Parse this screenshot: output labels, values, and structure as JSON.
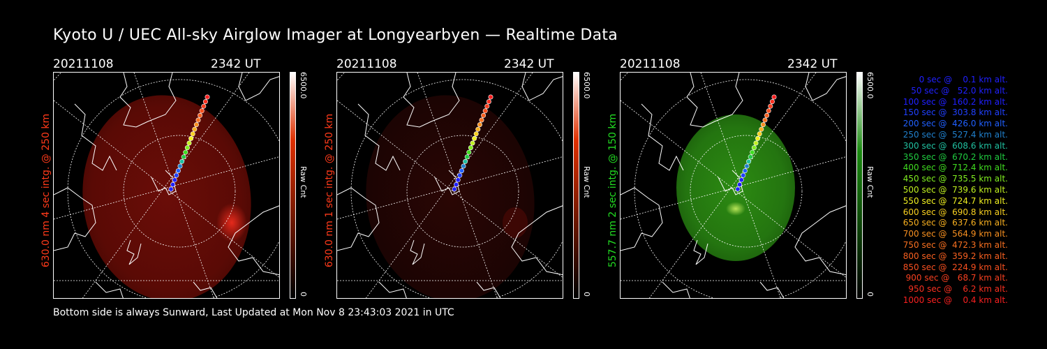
{
  "title": "Kyoto U / UEC All-sky Airglow Imager at Longyearbyen — Realtime Data",
  "panels": [
    {
      "date": "20211108",
      "time": "2342 UT",
      "ylabel": "630.0 nm 4 sec intg. @ 250 km",
      "ylabel_color": "#ff3a1a",
      "cbar_max": "6500.0",
      "cbar_min": "0",
      "cbar_unit": "Raw Cnt",
      "cbar_color": "#e03000"
    },
    {
      "date": "20211108",
      "time": "2342 UT",
      "ylabel": "630.0 nm 1 sec intg. @ 250 km",
      "ylabel_color": "#ff3a1a",
      "cbar_max": "6500.0",
      "cbar_min": "0",
      "cbar_unit": "Raw Cnt",
      "cbar_color": "#e03000"
    },
    {
      "date": "20211108",
      "time": "2342 UT",
      "ylabel": "557.7 nm 2 sec intg. @ 150 km",
      "ylabel_color": "#22dd22",
      "cbar_max": "6500.0",
      "cbar_min": "0",
      "cbar_unit": "Raw Cnt",
      "cbar_color": "#1a8a10"
    }
  ],
  "legend": [
    {
      "text": "   0 sec @    0.1 km alt.",
      "color": "#2020ff"
    },
    {
      "text": "  50 sec @   52.0 km alt.",
      "color": "#2020ff"
    },
    {
      "text": " 100 sec @  160.2 km alt.",
      "color": "#2020ff"
    },
    {
      "text": " 150 sec @  303.8 km alt.",
      "color": "#2040ff"
    },
    {
      "text": " 200 sec @  426.0 km alt.",
      "color": "#2060ff"
    },
    {
      "text": " 250 sec @  527.4 km alt.",
      "color": "#2080cc"
    },
    {
      "text": " 300 sec @  608.6 km alt.",
      "color": "#20c0a0"
    },
    {
      "text": " 350 sec @  670.2 km alt.",
      "color": "#20cc40"
    },
    {
      "text": " 400 sec @  712.4 km alt.",
      "color": "#40dd20"
    },
    {
      "text": " 450 sec @  735.5 km alt.",
      "color": "#80ee20"
    },
    {
      "text": " 500 sec @  739.6 km alt.",
      "color": "#c0f020"
    },
    {
      "text": " 550 sec @  724.7 km alt.",
      "color": "#f0f020"
    },
    {
      "text": " 600 sec @  690.8 km alt.",
      "color": "#f8d020"
    },
    {
      "text": " 650 sec @  637.6 km alt.",
      "color": "#f8b020"
    },
    {
      "text": " 700 sec @  564.9 km alt.",
      "color": "#f89020"
    },
    {
      "text": " 750 sec @  472.3 km alt.",
      "color": "#f87020"
    },
    {
      "text": " 800 sec @  359.2 km alt.",
      "color": "#f86020"
    },
    {
      "text": " 850 sec @  224.9 km alt.",
      "color": "#f85020"
    },
    {
      "text": " 900 sec @   68.7 km alt.",
      "color": "#f84020"
    },
    {
      "text": " 950 sec @    6.2 km alt.",
      "color": "#f83020"
    },
    {
      "text": "1000 sec @    0.4 km alt.",
      "color": "#f82020"
    }
  ],
  "footer": "Bottom side is always Sunward, Last Updated at Mon Nov  8 23:43:03 2021 in UTC"
}
